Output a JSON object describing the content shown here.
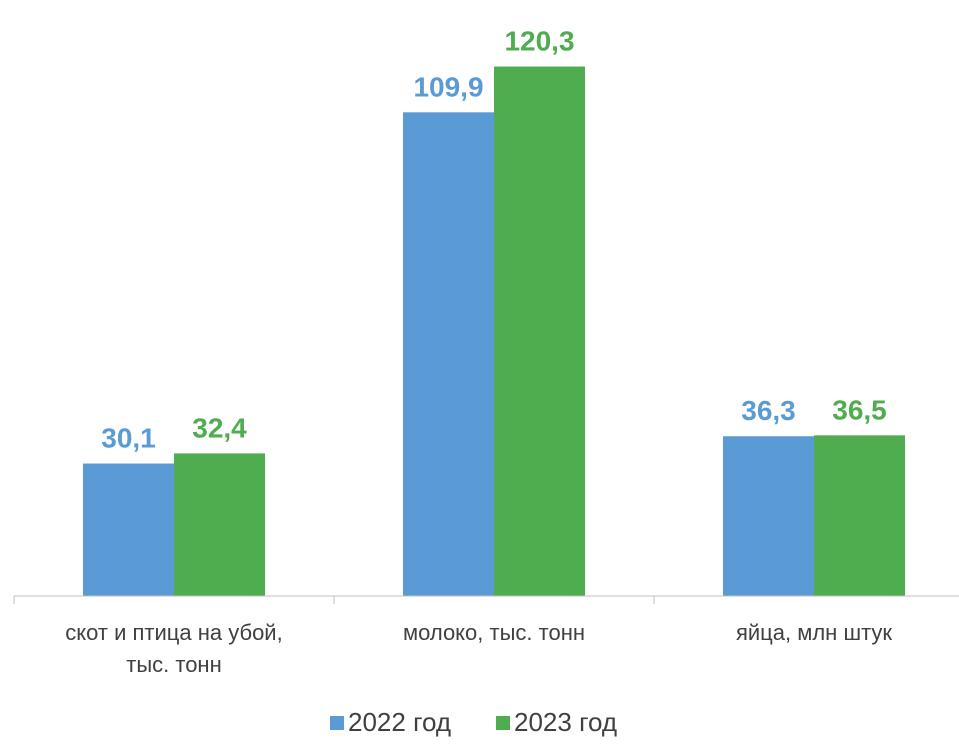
{
  "chart_data": {
    "type": "bar",
    "title": "",
    "xlabel": "",
    "ylabel": "",
    "categories": [
      [
        "скот и птица на убой,",
        "тыс. тонн"
      ],
      [
        "молоко, тыс. тонн"
      ],
      [
        "яйца, млн штук"
      ]
    ],
    "series": [
      {
        "name": "2022 год",
        "values": [
          30.1,
          109.9,
          36.3
        ],
        "labels": [
          "30,1",
          "109,9",
          "36,3"
        ],
        "color": "#5b9bd5"
      },
      {
        "name": "2023 год",
        "values": [
          32.4,
          120.3,
          36.5
        ],
        "labels": [
          "32,4",
          "120,3",
          "36,5"
        ],
        "color": "#4fad4f"
      }
    ],
    "ylim": [
      0,
      130
    ],
    "grid": false,
    "legend_position": "bottom"
  }
}
